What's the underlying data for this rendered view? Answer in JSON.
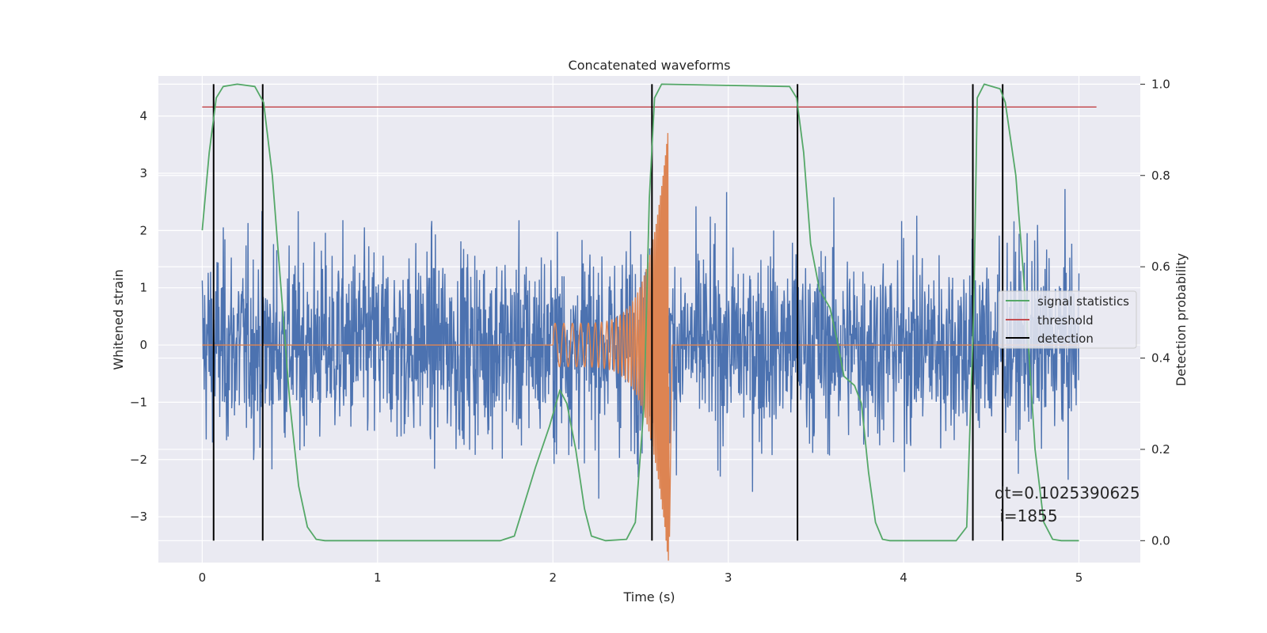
{
  "chart_data": {
    "type": "line",
    "title": "Concatenated waveforms",
    "xlabel": "Time (s)",
    "ylabel": "Whitened strain",
    "y2label": "Detection probability",
    "xlim": [
      -0.25,
      5.35
    ],
    "ylim": [
      -3.8,
      4.7
    ],
    "y2lim": [
      -0.048,
      1.018
    ],
    "xticks": [
      0,
      1,
      2,
      3,
      4,
      5
    ],
    "yticks": [
      -3,
      -2,
      -1,
      0,
      1,
      2,
      3,
      4
    ],
    "y2ticks": [
      0.0,
      0.2,
      0.4,
      0.6,
      0.8,
      1.0
    ],
    "y2tick_labels": [
      "0.0",
      "0.2",
      "0.4",
      "0.6",
      "0.8",
      "1.0"
    ],
    "grid": true,
    "legend_position": "right",
    "background": "#eaeaf2",
    "colors": {
      "noise": "#4c72b0",
      "injection": "#dd8452",
      "signal_statistics": "#55a868",
      "threshold": "#c44e52",
      "detection": "#000000"
    },
    "series": [
      {
        "name": "signal statistics",
        "axis": "right",
        "points": [
          [
            0,
            0.68
          ],
          [
            0.04,
            0.85
          ],
          [
            0.08,
            0.97
          ],
          [
            0.12,
            0.995
          ],
          [
            0.2,
            1.0
          ],
          [
            0.3,
            0.995
          ],
          [
            0.35,
            0.96
          ],
          [
            0.4,
            0.8
          ],
          [
            0.45,
            0.55
          ],
          [
            0.5,
            0.3
          ],
          [
            0.55,
            0.12
          ],
          [
            0.6,
            0.03
          ],
          [
            0.65,
            0.003
          ],
          [
            0.7,
            0.0
          ],
          [
            1.7,
            0.0
          ],
          [
            1.78,
            0.01
          ],
          [
            1.82,
            0.06
          ],
          [
            1.9,
            0.16
          ],
          [
            1.98,
            0.25
          ],
          [
            2.04,
            0.33
          ],
          [
            2.08,
            0.3
          ],
          [
            2.13,
            0.2
          ],
          [
            2.18,
            0.07
          ],
          [
            2.22,
            0.01
          ],
          [
            2.3,
            0.0
          ],
          [
            2.42,
            0.003
          ],
          [
            2.47,
            0.04
          ],
          [
            2.52,
            0.3
          ],
          [
            2.55,
            0.75
          ],
          [
            2.58,
            0.97
          ],
          [
            2.62,
            1.0
          ],
          [
            3.35,
            0.995
          ],
          [
            3.39,
            0.97
          ],
          [
            3.43,
            0.85
          ],
          [
            3.47,
            0.65
          ],
          [
            3.52,
            0.55
          ],
          [
            3.58,
            0.51
          ],
          [
            3.62,
            0.44
          ],
          [
            3.66,
            0.36
          ],
          [
            3.72,
            0.34
          ],
          [
            3.76,
            0.3
          ],
          [
            3.8,
            0.15
          ],
          [
            3.84,
            0.04
          ],
          [
            3.88,
            0.003
          ],
          [
            3.92,
            0.0
          ],
          [
            4.3,
            0.0
          ],
          [
            4.36,
            0.03
          ],
          [
            4.4,
            0.5
          ],
          [
            4.42,
            0.97
          ],
          [
            4.46,
            1.0
          ],
          [
            4.55,
            0.99
          ],
          [
            4.58,
            0.96
          ],
          [
            4.64,
            0.8
          ],
          [
            4.7,
            0.5
          ],
          [
            4.75,
            0.2
          ],
          [
            4.8,
            0.04
          ],
          [
            4.85,
            0.003
          ],
          [
            4.9,
            0.0
          ],
          [
            5.0,
            0.0
          ]
        ]
      },
      {
        "name": "threshold",
        "axis": "right",
        "points": [
          [
            0,
            0.95
          ],
          [
            5.1,
            0.95
          ]
        ]
      },
      {
        "name": "detection",
        "axis": "right",
        "vertical_lines_x": [
          0.065,
          0.345,
          2.565,
          3.395,
          4.395,
          4.565
        ],
        "y_range": [
          0.0,
          1.0
        ]
      },
      {
        "name": "",
        "axis": "left",
        "description_values": {
          "x_range": [
            0,
            5
          ],
          "noise_sigma": 0.85,
          "approx_range": [
            -3.4,
            3.6
          ]
        }
      },
      {
        "name": "",
        "axis": "left",
        "chirp": {
          "x_start": 2.0,
          "x_peak": 2.66,
          "amplitude_start": 0.38,
          "amplitude_peak": 3.85
        }
      }
    ],
    "annotations": [
      "dt=0.1025390625",
      " i=1855"
    ]
  }
}
